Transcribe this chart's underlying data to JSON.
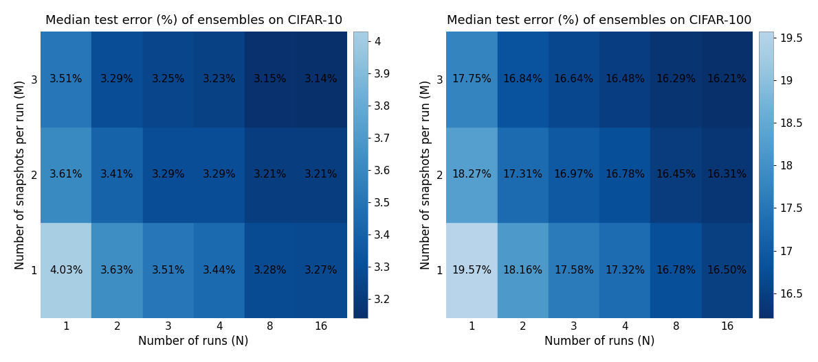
{
  "cifar10": {
    "title": "Median test error (%) of ensembles on CIFAR-10",
    "values": [
      [
        4.03,
        3.63,
        3.51,
        3.44,
        3.28,
        3.27
      ],
      [
        3.61,
        3.41,
        3.29,
        3.29,
        3.21,
        3.21
      ],
      [
        3.51,
        3.29,
        3.25,
        3.23,
        3.15,
        3.14
      ]
    ],
    "data_min": 3.14,
    "data_max": 4.03,
    "vmin": 3.14,
    "vmax": 4.5,
    "cbar_ticks": [
      3.2,
      3.3,
      3.4,
      3.5,
      3.6,
      3.7,
      3.8,
      3.9,
      4.0
    ],
    "cbar_ticklabels": [
      "3.2",
      "3.3",
      "3.4",
      "3.5",
      "3.6",
      "3.7",
      "3.8",
      "3.9",
      "4"
    ]
  },
  "cifar100": {
    "title": "Median test error (%) of ensembles on CIFAR-100",
    "values": [
      [
        19.57,
        18.16,
        17.58,
        17.32,
        16.78,
        16.5
      ],
      [
        18.27,
        17.31,
        16.97,
        16.78,
        16.45,
        16.31
      ],
      [
        17.75,
        16.84,
        16.64,
        16.48,
        16.29,
        16.21
      ]
    ],
    "data_min": 16.21,
    "data_max": 19.57,
    "vmin": 16.21,
    "vmax": 21.0,
    "cbar_ticks": [
      16.5,
      17.0,
      17.5,
      18.0,
      18.5,
      19.0,
      19.5
    ],
    "cbar_ticklabels": [
      "16.5",
      "17",
      "17.5",
      "18",
      "18.5",
      "19",
      "19.5"
    ]
  },
  "x_labels": [
    "1",
    "2",
    "3",
    "4",
    "8",
    "16"
  ],
  "y_labels": [
    "1",
    "2",
    "3"
  ],
  "xlabel": "Number of runs (N)",
  "ylabel": "Number of snapshots per run (M)",
  "text_color": "black",
  "title_fontsize": 13,
  "label_fontsize": 12,
  "tick_fontsize": 11,
  "cell_fontsize": 11
}
